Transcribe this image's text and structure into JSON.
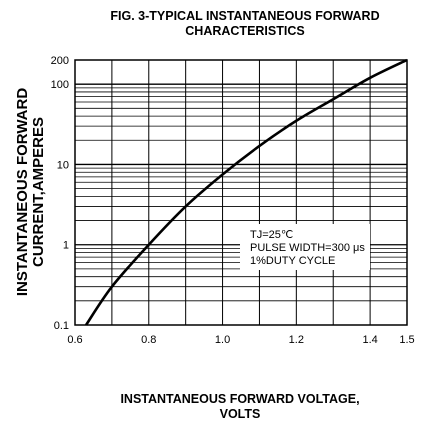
{
  "chart_data": {
    "type": "line",
    "title_line1": "FIG. 3-TYPICAL INSTANTANEOUS FORWARD",
    "title_line2": "CHARACTERISTICS",
    "xlabel_line1": "INSTANTANEOUS FORWARD VOLTAGE,",
    "xlabel_line2": "VOLTS",
    "ylabel_line1": "INSTANTANEOUS FORWARD",
    "ylabel_line2": "CURRENT,AMPERES",
    "xlim": [
      0.6,
      1.5
    ],
    "ylim": [
      0.1,
      200
    ],
    "yscale": "log",
    "grid": true,
    "x_ticks": [
      0.6,
      0.8,
      1.0,
      1.2,
      1.4,
      1.5
    ],
    "x_tick_labels": [
      "0.6",
      "0.8",
      "1.0",
      "1.2",
      "1.4",
      "1.5"
    ],
    "y_ticks": [
      0.1,
      1,
      10,
      100,
      200
    ],
    "y_tick_labels": [
      "0.1",
      "1",
      "10",
      "100",
      "200"
    ],
    "series": [
      {
        "x": [
          0.63,
          0.7,
          0.8,
          0.9,
          1.0,
          1.1,
          1.2,
          1.3,
          1.4,
          1.5
        ],
        "y": [
          0.1,
          0.3,
          1.0,
          3.0,
          7.5,
          17,
          35,
          65,
          120,
          200
        ]
      }
    ],
    "annotation": {
      "line1": "TJ=25℃",
      "line2": "PULSE WIDTH=300 μs",
      "line3": "1%DUTY CYCLE"
    }
  }
}
